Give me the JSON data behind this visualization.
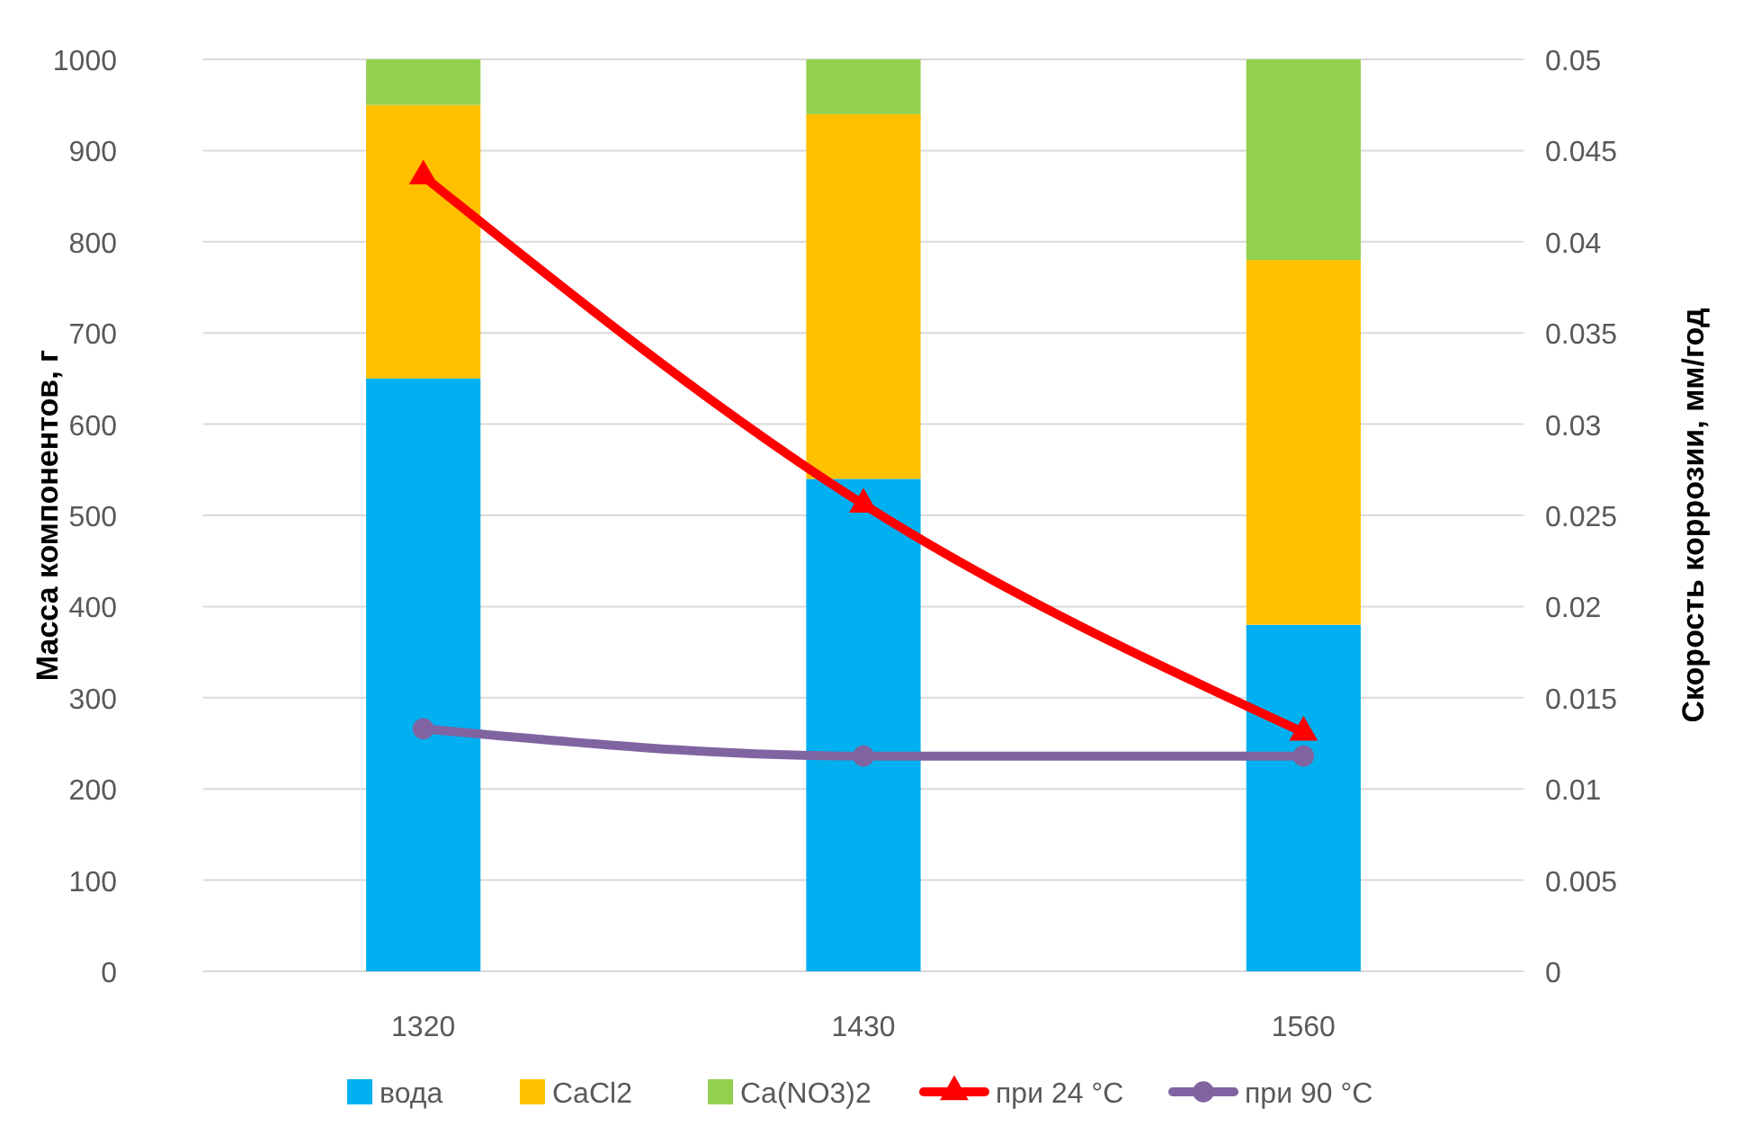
{
  "chart_data": {
    "type": "bar",
    "stacked": true,
    "categories": [
      "1320",
      "1430",
      "1560"
    ],
    "ylabel": "Масса компонентов, г",
    "y2label": "Скорость коррозии, мм/год",
    "ylim": [
      0,
      1000
    ],
    "yticks": [
      0,
      100,
      200,
      300,
      400,
      500,
      600,
      700,
      800,
      900,
      1000
    ],
    "y2lim": [
      0,
      0.05
    ],
    "y2ticks": [
      0,
      0.005,
      0.01,
      0.015,
      0.02,
      0.025,
      0.03,
      0.035,
      0.04,
      0.045,
      0.05
    ],
    "grid": "y",
    "legend": "bottom",
    "series": [
      {
        "name": "вода",
        "color": "#00b0f0",
        "values": [
          650,
          540,
          380
        ]
      },
      {
        "name": "CaCl2",
        "color": "#ffc000",
        "values": [
          300,
          400,
          400
        ]
      },
      {
        "name": "Ca(NO3)2",
        "color": "#92d050",
        "values": [
          50,
          60,
          220
        ]
      },
      {
        "name": "при 24 °С",
        "type": "line",
        "axis": "y2",
        "color": "#ff0000",
        "marker": "triangle",
        "values": [
          0.0436,
          0.0256,
          0.0131
        ]
      },
      {
        "name": "при 90 °С",
        "type": "line",
        "axis": "y2",
        "color": "#8064a2",
        "marker": "circle",
        "values": [
          0.0133,
          0.0118,
          0.0118
        ]
      }
    ]
  }
}
